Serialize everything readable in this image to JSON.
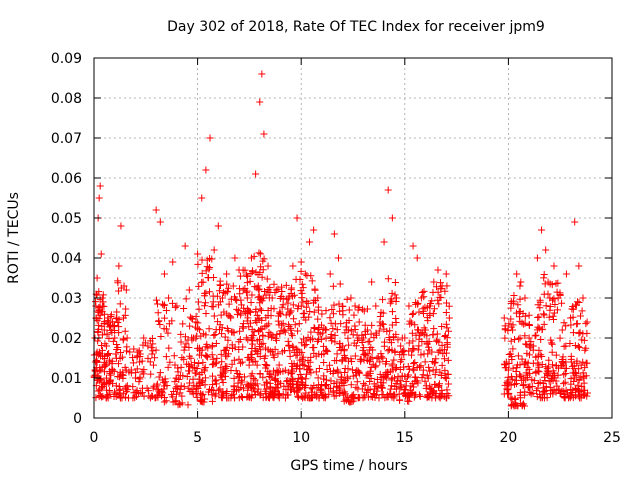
{
  "chart_data": {
    "type": "scatter",
    "title": "Day 302 of 2018, Rate Of TEC Index for receiver jpm9",
    "xlabel": "GPS time / hours",
    "ylabel": "ROTI / TECUs",
    "xlim": [
      0,
      25
    ],
    "ylim": [
      0,
      0.09
    ],
    "grid": true,
    "marker": "+",
    "point_color": "#ff0000",
    "x_ticks": [
      0,
      5,
      10,
      15,
      20,
      25
    ],
    "y_ticks": [
      0,
      0.01,
      0.02,
      0.03,
      0.04,
      0.05,
      0.06,
      0.07,
      0.08,
      0.09
    ],
    "x_tick_labels": [
      "0",
      "5",
      "10",
      "15",
      "20",
      "25"
    ],
    "y_tick_labels": [
      "0",
      "0.01",
      "0.02",
      "0.03",
      "0.04",
      "0.05",
      "0.06",
      "0.07",
      "0.08",
      "0.09"
    ],
    "series": [
      {
        "name": "ROTI",
        "x": [
          0.05,
          0.1,
          0.15,
          0.2,
          0.25,
          0.3,
          0.35,
          0.4,
          0.5,
          0.6,
          0.75,
          0.9,
          1.0,
          1.1,
          1.2,
          1.3,
          1.45,
          1.6,
          1.8,
          2.0,
          2.2,
          2.4,
          2.6,
          2.8,
          3.0,
          3.2,
          3.4,
          3.6,
          3.8,
          4.0,
          4.2,
          4.4,
          4.6,
          4.8,
          5.0,
          5.2,
          5.4,
          5.6,
          5.8,
          6.0,
          6.2,
          6.4,
          6.6,
          6.8,
          7.0,
          7.2,
          7.4,
          7.6,
          7.8,
          8.0,
          8.1,
          8.2,
          8.4,
          8.6,
          8.8,
          9.0,
          9.2,
          9.4,
          9.6,
          9.8,
          10.0,
          10.2,
          10.4,
          10.6,
          10.8,
          11.0,
          11.2,
          11.4,
          11.6,
          11.8,
          12.0,
          12.2,
          12.4,
          12.6,
          12.8,
          13.0,
          13.2,
          13.4,
          13.6,
          13.8,
          14.0,
          14.2,
          14.4,
          14.6,
          14.8,
          15.0,
          15.2,
          15.4,
          15.6,
          15.8,
          16.0,
          16.2,
          16.4,
          16.6,
          16.8,
          17.0,
          17.15,
          19.8,
          19.9,
          20.0,
          20.2,
          20.4,
          20.6,
          20.8,
          21.0,
          21.2,
          21.4,
          21.6,
          21.8,
          22.0,
          22.2,
          22.4,
          22.6,
          22.8,
          23.0,
          23.2,
          23.4,
          23.6,
          23.8
        ],
        "values": [
          0.012,
          0.025,
          0.035,
          0.05,
          0.055,
          0.058,
          0.041,
          0.03,
          0.022,
          0.018,
          0.014,
          0.012,
          0.02,
          0.025,
          0.038,
          0.048,
          0.033,
          0.02,
          0.012,
          0.01,
          0.014,
          0.02,
          0.018,
          0.016,
          0.052,
          0.049,
          0.036,
          0.03,
          0.039,
          0.028,
          0.019,
          0.043,
          0.032,
          0.02,
          0.041,
          0.055,
          0.062,
          0.07,
          0.042,
          0.048,
          0.03,
          0.036,
          0.025,
          0.04,
          0.037,
          0.032,
          0.03,
          0.04,
          0.061,
          0.079,
          0.086,
          0.071,
          0.038,
          0.03,
          0.032,
          0.026,
          0.022,
          0.03,
          0.038,
          0.05,
          0.039,
          0.036,
          0.044,
          0.047,
          0.03,
          0.026,
          0.022,
          0.036,
          0.046,
          0.04,
          0.018,
          0.022,
          0.03,
          0.028,
          0.024,
          0.02,
          0.022,
          0.034,
          0.028,
          0.024,
          0.044,
          0.057,
          0.05,
          0.03,
          0.018,
          0.02,
          0.028,
          0.043,
          0.04,
          0.03,
          0.022,
          0.028,
          0.034,
          0.037,
          0.033,
          0.036,
          0.025,
          0.025,
          0.014,
          0.012,
          0.022,
          0.036,
          0.034,
          0.03,
          0.02,
          0.018,
          0.04,
          0.047,
          0.042,
          0.03,
          0.038,
          0.03,
          0.022,
          0.036,
          0.025,
          0.049,
          0.038,
          0.03,
          0.024
        ],
        "ranges": [
          [
            0.0,
            0.5,
            0.005,
            0.032,
            80
          ],
          [
            0.5,
            1.0,
            0.005,
            0.026,
            55
          ],
          [
            1.0,
            1.7,
            0.005,
            0.035,
            60
          ],
          [
            1.7,
            2.3,
            0.005,
            0.018,
            25
          ],
          [
            2.3,
            3.0,
            0.005,
            0.022,
            30
          ],
          [
            3.0,
            4.0,
            0.004,
            0.03,
            60
          ],
          [
            4.0,
            4.6,
            0.003,
            0.03,
            35
          ],
          [
            4.6,
            5.0,
            0.005,
            0.028,
            35
          ],
          [
            5.0,
            5.8,
            0.004,
            0.04,
            90
          ],
          [
            5.8,
            6.4,
            0.005,
            0.035,
            60
          ],
          [
            6.4,
            7.0,
            0.005,
            0.034,
            55
          ],
          [
            7.0,
            7.6,
            0.005,
            0.038,
            70
          ],
          [
            7.6,
            8.4,
            0.005,
            0.042,
            110
          ],
          [
            8.4,
            9.0,
            0.005,
            0.035,
            80
          ],
          [
            9.0,
            9.6,
            0.005,
            0.034,
            65
          ],
          [
            9.6,
            10.2,
            0.005,
            0.038,
            70
          ],
          [
            10.2,
            10.8,
            0.005,
            0.036,
            60
          ],
          [
            10.8,
            11.4,
            0.005,
            0.03,
            50
          ],
          [
            11.4,
            12.0,
            0.005,
            0.034,
            55
          ],
          [
            12.0,
            12.6,
            0.004,
            0.03,
            55
          ],
          [
            12.6,
            13.2,
            0.005,
            0.028,
            50
          ],
          [
            13.2,
            13.8,
            0.005,
            0.024,
            45
          ],
          [
            13.8,
            14.2,
            0.005,
            0.03,
            40
          ],
          [
            14.2,
            14.6,
            0.005,
            0.035,
            45
          ],
          [
            14.6,
            15.2,
            0.004,
            0.02,
            40
          ],
          [
            15.2,
            15.8,
            0.005,
            0.03,
            55
          ],
          [
            15.8,
            16.4,
            0.005,
            0.032,
            60
          ],
          [
            16.4,
            17.15,
            0.005,
            0.034,
            75
          ],
          [
            19.8,
            20.1,
            0.006,
            0.024,
            25
          ],
          [
            20.1,
            20.8,
            0.003,
            0.034,
            75
          ],
          [
            20.8,
            21.3,
            0.006,
            0.026,
            35
          ],
          [
            21.3,
            22.0,
            0.005,
            0.036,
            70
          ],
          [
            22.0,
            22.6,
            0.006,
            0.034,
            55
          ],
          [
            22.6,
            23.2,
            0.005,
            0.028,
            50
          ],
          [
            23.2,
            23.85,
            0.005,
            0.03,
            60
          ]
        ]
      }
    ]
  }
}
